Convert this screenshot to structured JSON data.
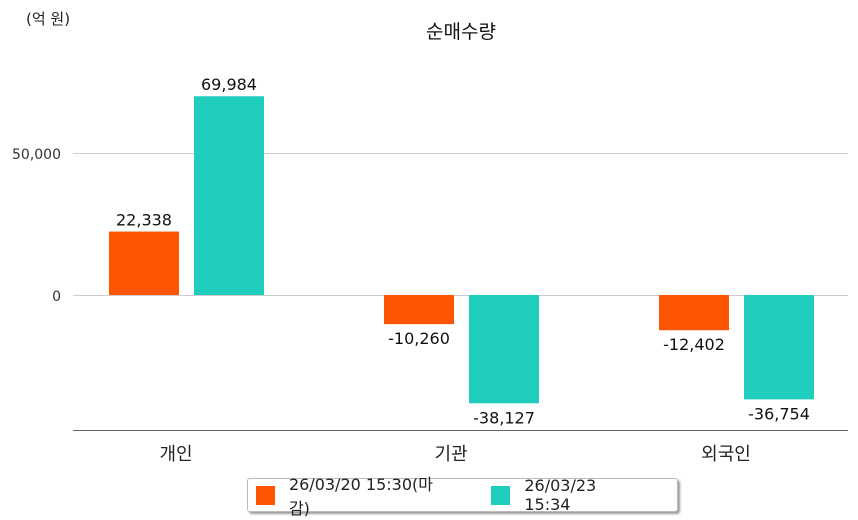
{
  "chart_data": {
    "type": "bar",
    "title": "순매수량",
    "unit_label": "(억 원)",
    "categories": [
      "개인",
      "기관",
      "외국인"
    ],
    "series": [
      {
        "name": "26/03/20 15:30(마감)",
        "color": "#FF5500",
        "values": [
          22338,
          -10260,
          -12402
        ],
        "labels": [
          "22,338",
          "-10,260",
          "-12,402"
        ]
      },
      {
        "name": "26/03/23 15:34",
        "color": "#1ECDBC",
        "values": [
          69984,
          -38127,
          -36754
        ],
        "labels": [
          "69,984",
          "-38,127",
          "-36,754"
        ]
      }
    ],
    "yticks": [
      0,
      50000
    ],
    "ytick_labels": [
      "0",
      "50,000"
    ],
    "ylim": [
      -47500,
      80000
    ],
    "grid": true,
    "legend": "bottom-center"
  }
}
